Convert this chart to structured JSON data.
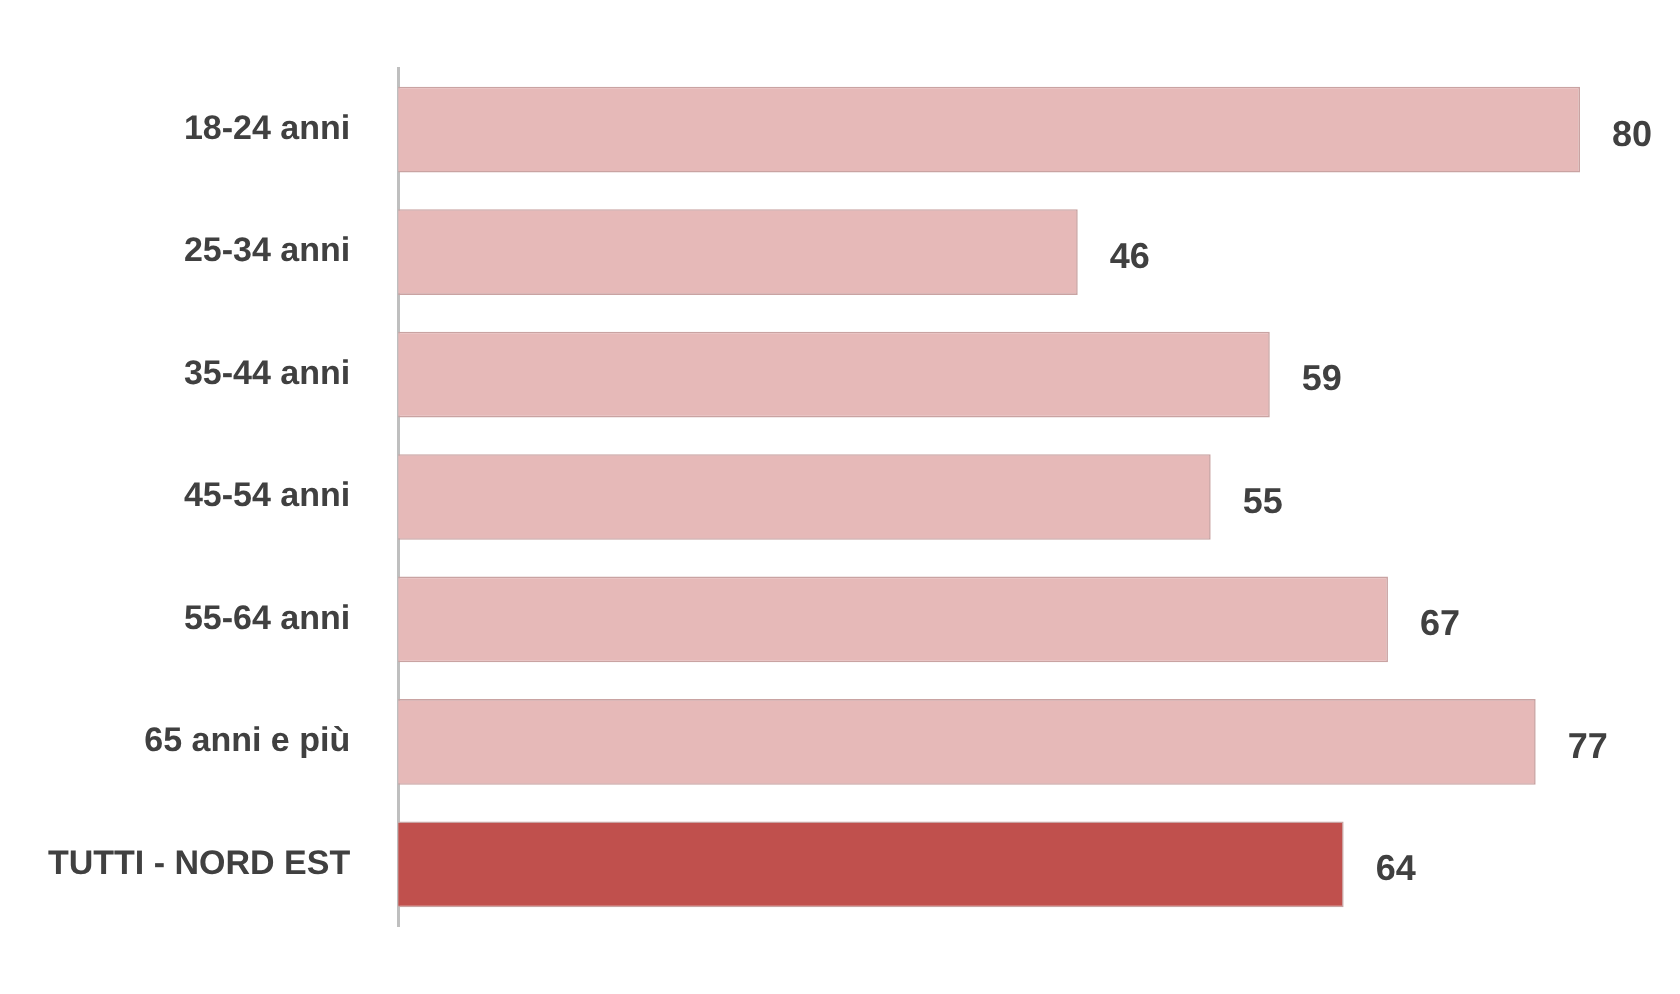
{
  "chart_data": {
    "type": "bar",
    "orientation": "horizontal",
    "categories": [
      "18-24 anni",
      "25-34 anni",
      "35-44 anni",
      "45-54 anni",
      "55-64 anni",
      "65 anni e più",
      "TUTTI - NORD EST"
    ],
    "values": [
      80,
      46,
      59,
      55,
      67,
      77,
      64
    ],
    "colors": [
      "#e6b9b8",
      "#e6b9b8",
      "#e6b9b8",
      "#e6b9b8",
      "#e6b9b8",
      "#e6b9b8",
      "#c0504d"
    ],
    "data_labels": true,
    "legend": false
  }
}
